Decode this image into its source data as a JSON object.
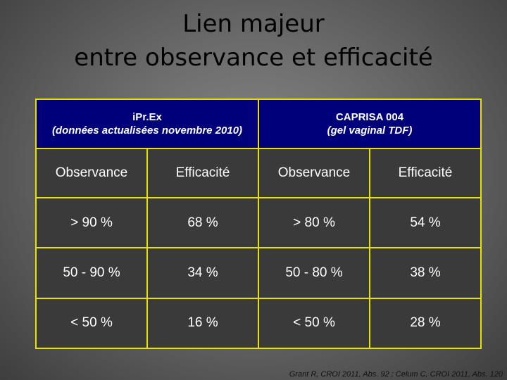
{
  "title": {
    "line1": "Lien majeur",
    "line2": "entre observance et efficacité"
  },
  "table": {
    "groups": [
      {
        "name": "iPr.Ex",
        "sub": "(données actualisées novembre 2010)"
      },
      {
        "name": "CAPRISA 004",
        "sub": "(gel vaginal TDF)"
      }
    ],
    "columns": [
      "Observance",
      "Efficacité",
      "Observance",
      "Efficacité"
    ],
    "rows": [
      [
        "> 90 %",
        "68 %",
        "> 80 %",
        "54 %"
      ],
      [
        "50 - 90 %",
        "34 %",
        "50 - 80 %",
        "38 %"
      ],
      [
        "< 50 %",
        "16 %",
        "< 50 %",
        "28 %"
      ]
    ]
  },
  "source": "Grant R, CROI 2011, Abs. 92 ; Celum C, CROI 2011, Abs. 120",
  "colors": {
    "border": "#e8e200",
    "group_header_bg": "#00007a",
    "cell_bg": "#3a3a3a"
  }
}
